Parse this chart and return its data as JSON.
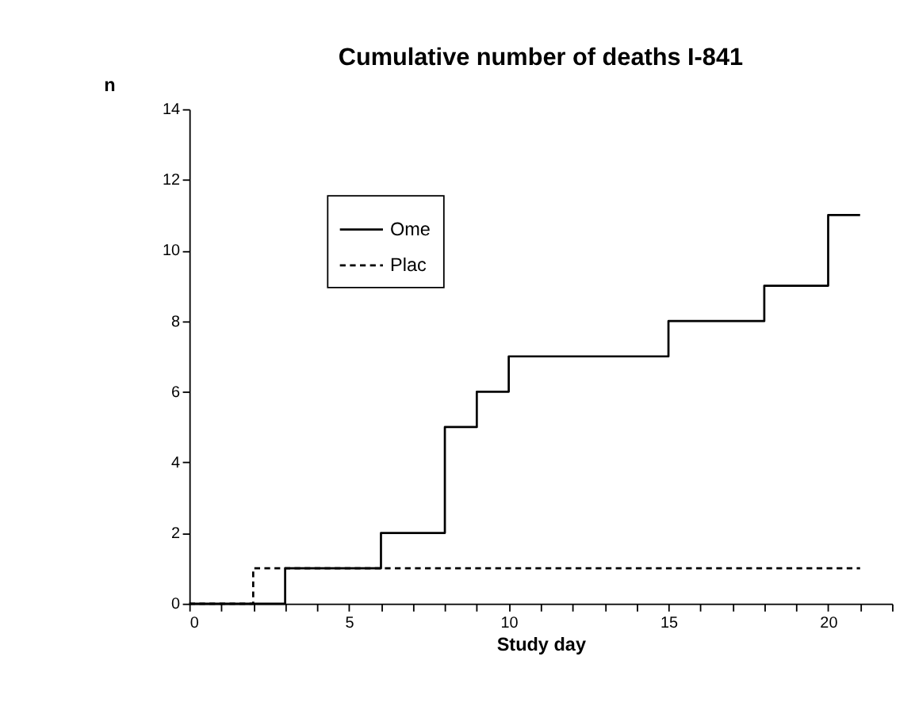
{
  "chart_data": {
    "type": "step",
    "title": "Cumulative number of deaths I-841",
    "xlabel": "Study day",
    "ylabel": "n",
    "series": [
      {
        "name": "Ome",
        "color": "#000000",
        "line_style": "solid",
        "x": [
          0,
          3,
          6,
          8,
          9,
          10,
          15,
          18,
          20,
          21
        ],
        "values": [
          0,
          1,
          2,
          5,
          6,
          7,
          8,
          9,
          11,
          11
        ]
      },
      {
        "name": "Plac",
        "color": "#000000",
        "line_style": "dashed",
        "x": [
          0,
          2,
          21
        ],
        "values": [
          0,
          1,
          1
        ]
      }
    ],
    "xlim": [
      0,
      22
    ],
    "ylim": [
      0,
      14
    ],
    "xticks": [
      0,
      {
        "value": 1,
        "label": null
      },
      {
        "value": 2,
        "label": null
      },
      {
        "value": 3,
        "label": null
      },
      {
        "value": 4,
        "label": null
      },
      5,
      {
        "value": 6,
        "label": null
      },
      {
        "value": 7,
        "label": null
      },
      {
        "value": 8,
        "label": null
      },
      {
        "value": 9,
        "label": null
      },
      10,
      {
        "value": 11,
        "label": null
      },
      {
        "value": 12,
        "label": null
      },
      {
        "value": 13,
        "label": null
      },
      {
        "value": 14,
        "label": null
      },
      15,
      {
        "value": 16,
        "label": null
      },
      {
        "value": 17,
        "label": null
      },
      {
        "value": 18,
        "label": null
      },
      {
        "value": 19,
        "label": null
      },
      20,
      {
        "value": 21,
        "label": null
      },
      {
        "value": 22,
        "label": null
      }
    ],
    "yticks": [
      0,
      2,
      4,
      6,
      8,
      10,
      12,
      14
    ],
    "grid": false,
    "legend": "top left",
    "marker": "none"
  }
}
